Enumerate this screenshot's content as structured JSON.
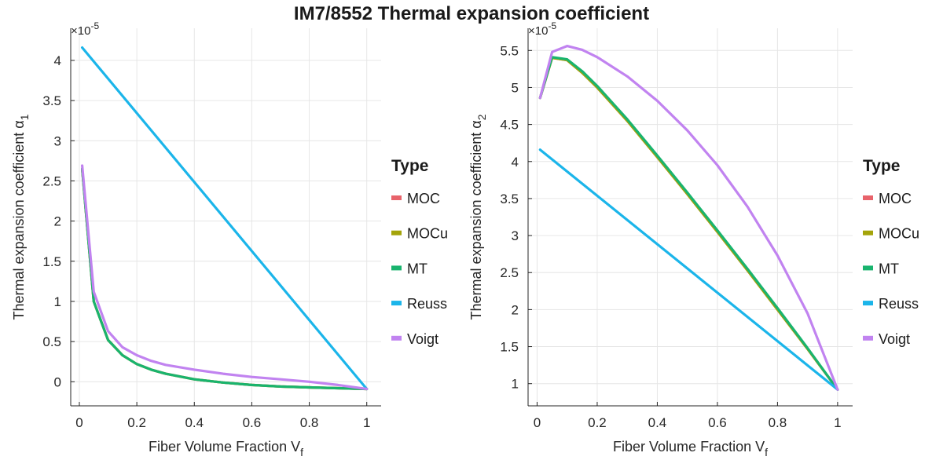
{
  "title": "IM7/8552 Thermal expansion coefficient",
  "colors": {
    "MOC": "#E8636B",
    "MOCu": "#A4A40A",
    "MT": "#19B46E",
    "Reuss": "#1BB5EA",
    "Voigt": "#C183F0",
    "grid": "#e6e6e6",
    "axis": "#262626"
  },
  "chart_data": [
    {
      "type": "line",
      "xlabel": "Fiber Volume Fraction V",
      "xlabel_sub": "f",
      "ylabel": "Thermal expansion coefficient α",
      "ylabel_sub": "1",
      "exponent_base": "×10",
      "exponent_power": "-5",
      "xlim": [
        -0.03,
        1.05
      ],
      "ylim": [
        -0.3,
        4.4
      ],
      "xticks": [
        0,
        0.2,
        0.4,
        0.6,
        0.8,
        1
      ],
      "xtick_labels": [
        "0",
        "0.2",
        "0.4",
        "0.6",
        "0.8",
        "1"
      ],
      "yticks": [
        0,
        0.5,
        1,
        1.5,
        2,
        2.5,
        3,
        3.5,
        4
      ],
      "ytick_labels": [
        "0",
        "0.5",
        "1",
        "1.5",
        "2",
        "2.5",
        "3",
        "3.5",
        "4"
      ],
      "grid": true,
      "legend": {
        "title": "Type",
        "placement": "outside-right"
      },
      "series": [
        {
          "name": "MOC",
          "x": [
            0.01,
            0.05,
            0.1,
            0.15,
            0.2,
            0.25,
            0.3,
            0.4,
            0.5,
            0.6,
            0.7,
            0.8,
            0.9,
            1.0
          ],
          "y": [
            2.65,
            1.0,
            0.52,
            0.33,
            0.22,
            0.15,
            0.1,
            0.03,
            -0.01,
            -0.04,
            -0.06,
            -0.07,
            -0.08,
            -0.09
          ]
        },
        {
          "name": "MOCu",
          "x": [
            0.01,
            0.05,
            0.1,
            0.15,
            0.2,
            0.25,
            0.3,
            0.4,
            0.5,
            0.6,
            0.7,
            0.8,
            0.9,
            1.0
          ],
          "y": [
            2.65,
            1.0,
            0.52,
            0.33,
            0.22,
            0.15,
            0.1,
            0.03,
            -0.01,
            -0.04,
            -0.06,
            -0.07,
            -0.08,
            -0.09
          ]
        },
        {
          "name": "MT",
          "x": [
            0.01,
            0.05,
            0.1,
            0.15,
            0.2,
            0.25,
            0.3,
            0.4,
            0.5,
            0.6,
            0.7,
            0.8,
            0.9,
            1.0
          ],
          "y": [
            2.65,
            1.0,
            0.52,
            0.33,
            0.22,
            0.15,
            0.1,
            0.03,
            -0.01,
            -0.04,
            -0.06,
            -0.07,
            -0.08,
            -0.09
          ]
        },
        {
          "name": "Reuss",
          "x": [
            0.01,
            1.0
          ],
          "y": [
            4.16,
            -0.09
          ]
        },
        {
          "name": "Voigt",
          "x": [
            0.01,
            0.05,
            0.1,
            0.15,
            0.2,
            0.25,
            0.3,
            0.4,
            0.5,
            0.6,
            0.7,
            0.8,
            0.9,
            1.0
          ],
          "y": [
            2.69,
            1.12,
            0.63,
            0.43,
            0.33,
            0.26,
            0.21,
            0.15,
            0.1,
            0.06,
            0.03,
            0.0,
            -0.04,
            -0.09
          ]
        }
      ]
    },
    {
      "type": "line",
      "xlabel": "Fiber Volume Fraction V",
      "xlabel_sub": "f",
      "ylabel": "Thermal expansion coefficient α",
      "ylabel_sub": "2",
      "exponent_base": "×10",
      "exponent_power": "-5",
      "xlim": [
        -0.03,
        1.05
      ],
      "ylim": [
        0.7,
        5.8
      ],
      "xticks": [
        0,
        0.2,
        0.4,
        0.6,
        0.8,
        1
      ],
      "xtick_labels": [
        "0",
        "0.2",
        "0.4",
        "0.6",
        "0.8",
        "1"
      ],
      "yticks": [
        1,
        1.5,
        2,
        2.5,
        3,
        3.5,
        4,
        4.5,
        5,
        5.5
      ],
      "ytick_labels": [
        "1",
        "1.5",
        "2",
        "2.5",
        "3",
        "3.5",
        "4",
        "4.5",
        "5",
        "5.5"
      ],
      "grid": true,
      "legend": {
        "title": "Type",
        "placement": "outside-right"
      },
      "series": [
        {
          "name": "MOC",
          "x": [
            0.01,
            0.05,
            0.1,
            0.15,
            0.2,
            0.3,
            0.4,
            0.5,
            0.6,
            0.7,
            0.8,
            0.9,
            1.0
          ],
          "y": [
            4.86,
            5.4,
            5.37,
            5.2,
            5.0,
            4.55,
            4.06,
            3.56,
            3.05,
            2.53,
            2.0,
            1.47,
            0.92
          ]
        },
        {
          "name": "MOCu",
          "x": [
            0.01,
            0.05,
            0.1,
            0.15,
            0.2,
            0.3,
            0.4,
            0.5,
            0.6,
            0.7,
            0.8,
            0.9,
            1.0
          ],
          "y": [
            4.86,
            5.4,
            5.37,
            5.2,
            5.0,
            4.55,
            4.06,
            3.56,
            3.05,
            2.53,
            2.0,
            1.47,
            0.92
          ]
        },
        {
          "name": "MT",
          "x": [
            0.01,
            0.05,
            0.1,
            0.15,
            0.2,
            0.3,
            0.4,
            0.5,
            0.6,
            0.7,
            0.8,
            0.9,
            1.0
          ],
          "y": [
            4.86,
            5.41,
            5.38,
            5.22,
            5.02,
            4.57,
            4.08,
            3.58,
            3.07,
            2.55,
            2.02,
            1.48,
            0.92
          ]
        },
        {
          "name": "Reuss",
          "x": [
            0.01,
            1.0
          ],
          "y": [
            4.16,
            0.92
          ]
        },
        {
          "name": "Voigt",
          "x": [
            0.01,
            0.05,
            0.1,
            0.15,
            0.2,
            0.3,
            0.4,
            0.5,
            0.6,
            0.7,
            0.8,
            0.9,
            1.0
          ],
          "y": [
            4.86,
            5.48,
            5.56,
            5.51,
            5.41,
            5.15,
            4.82,
            4.42,
            3.95,
            3.39,
            2.73,
            1.95,
            0.92
          ]
        }
      ]
    }
  ]
}
